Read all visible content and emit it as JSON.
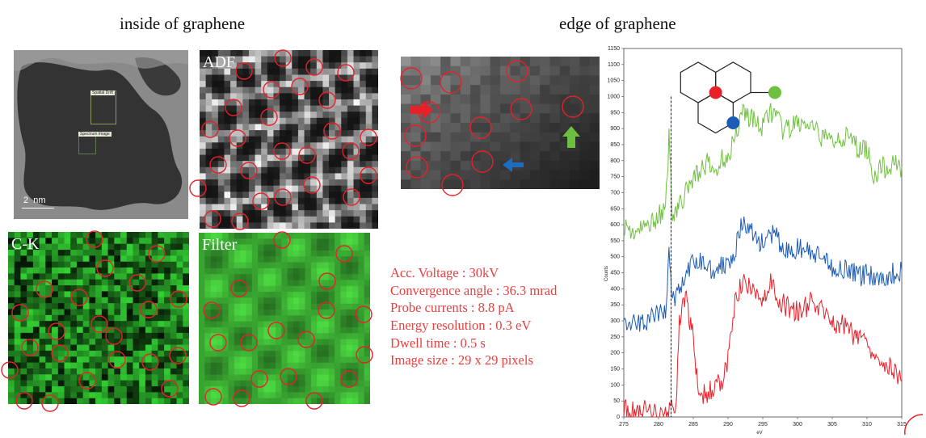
{
  "headings": {
    "inside": "inside of graphene",
    "edge": "edge of graphene"
  },
  "overview_panel": {
    "tag_drift": "Spatial Drift",
    "tag_spectrum": "Spectrum Image",
    "scale_bar": "2  nm"
  },
  "panels": {
    "adf": "ADF",
    "ck": "C-K",
    "filter": "Filter"
  },
  "parameters": [
    "Acc. Voltage : 30kV",
    "Convergence angle : 36.3 mrad",
    "Probe currents : 8.8 pA",
    "Energy resolution : 0.3 eV",
    "Dwell time : 0.5 s",
    "Image size : 29 x 29 pixels"
  ],
  "colors": {
    "red": "#e8202a",
    "green": "#70c040",
    "blue": "#1c5cb4",
    "arrow_red": "#e8202a",
    "arrow_blue": "#1c6cc0",
    "arrow_green": "#6cc040"
  },
  "chart_data": {
    "type": "line",
    "xlabel": "eV",
    "ylabel": "Counts",
    "xlim": [
      275,
      315
    ],
    "ylim": [
      0,
      1150
    ],
    "xticks": [
      275,
      280,
      285,
      290,
      295,
      300,
      305,
      310,
      315
    ],
    "yticks": [
      0,
      50,
      100,
      150,
      200,
      250,
      300,
      350,
      400,
      450,
      500,
      550,
      600,
      650,
      700,
      750,
      800,
      850,
      900,
      950,
      1000,
      1050,
      1100,
      1150
    ],
    "marker_x": 281.8,
    "series": [
      {
        "color": "green",
        "x": [
          275,
          276,
          277,
          278,
          279,
          280,
          281,
          281.5,
          282,
          282.5,
          283,
          284,
          285,
          286,
          287,
          288,
          289,
          290,
          291,
          292,
          293,
          294,
          295,
          296,
          297,
          298,
          299,
          300,
          301,
          302,
          303,
          304,
          305,
          306,
          307,
          308,
          309,
          310,
          311,
          312,
          313,
          314,
          315
        ],
        "y": [
          600,
          580,
          575,
          590,
          610,
          630,
          640,
          870,
          640,
          650,
          660,
          700,
          750,
          770,
          790,
          760,
          800,
          820,
          870,
          960,
          940,
          920,
          900,
          960,
          930,
          890,
          900,
          920,
          910,
          900,
          880,
          870,
          860,
          880,
          870,
          860,
          830,
          840,
          750,
          780,
          770,
          800,
          780
        ]
      },
      {
        "color": "blue",
        "x": [
          275,
          276,
          277,
          278,
          279,
          280,
          281,
          281.5,
          282,
          282.5,
          283,
          284,
          285,
          286,
          287,
          288,
          289,
          290,
          291,
          292,
          293,
          294,
          295,
          296,
          297,
          298,
          299,
          300,
          301,
          302,
          303,
          304,
          305,
          306,
          307,
          308,
          309,
          310,
          311,
          312,
          313,
          314,
          315
        ],
        "y": [
          300,
          290,
          285,
          300,
          310,
          320,
          330,
          510,
          360,
          380,
          400,
          440,
          480,
          490,
          470,
          460,
          470,
          490,
          520,
          600,
          590,
          560,
          540,
          570,
          560,
          520,
          510,
          530,
          520,
          510,
          500,
          480,
          470,
          460,
          470,
          450,
          440,
          450,
          440,
          430,
          440,
          450,
          460
        ]
      },
      {
        "color": "red",
        "x": [
          275,
          276,
          277,
          278,
          279,
          280,
          281,
          282,
          282.5,
          283,
          283.5,
          284,
          284.5,
          285,
          285.5,
          286,
          287,
          288,
          289,
          290,
          291,
          292,
          293,
          294,
          295,
          296,
          297,
          298,
          299,
          300,
          301,
          302,
          303,
          304,
          305,
          306,
          307,
          308,
          309,
          310,
          311,
          312,
          313,
          314,
          315
        ],
        "y": [
          20,
          15,
          10,
          20,
          10,
          15,
          10,
          25,
          40,
          300,
          350,
          360,
          300,
          250,
          120,
          80,
          70,
          90,
          110,
          180,
          350,
          420,
          400,
          380,
          370,
          420,
          380,
          350,
          340,
          330,
          340,
          360,
          340,
          320,
          300,
          290,
          280,
          260,
          250,
          240,
          200,
          180,
          170,
          140,
          110
        ]
      }
    ]
  }
}
